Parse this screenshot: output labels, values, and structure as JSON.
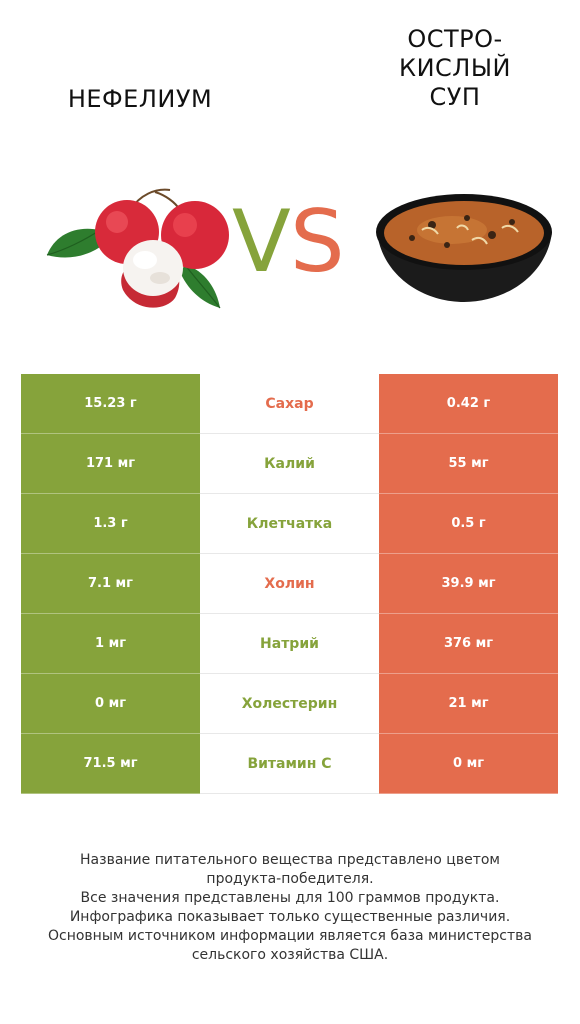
{
  "header": {
    "left_title": "НЕФЕЛИУМ",
    "right_title_lines": [
      "ОСТРО-",
      "КИСЛЫЙ",
      "СУП"
    ]
  },
  "vs": {
    "v": "V",
    "s": "S"
  },
  "colors": {
    "left": "#86a33b",
    "right": "#e46c4d",
    "neutral": "#86a33b"
  },
  "rows": [
    {
      "left": "15.23 г",
      "nutrient": "Сахар",
      "right": "0.42 г",
      "winner": "right"
    },
    {
      "left": "171 мг",
      "nutrient": "Калий",
      "right": "55 мг",
      "winner": "left"
    },
    {
      "left": "1.3 г",
      "nutrient": "Клетчатка",
      "right": "0.5 г",
      "winner": "left"
    },
    {
      "left": "7.1 мг",
      "nutrient": "Холин",
      "right": "39.9 мг",
      "winner": "right"
    },
    {
      "left": "1 мг",
      "nutrient": "Натрий",
      "right": "376 мг",
      "winner": "left"
    },
    {
      "left": "0 мг",
      "nutrient": "Холестерин",
      "right": "21 мг",
      "winner": "left"
    },
    {
      "left": "71.5 мг",
      "nutrient": "Витамин C",
      "right": "0 мг",
      "winner": "left"
    }
  ],
  "footer_lines": [
    "Название питательного вещества представлено цветом",
    "продукта-победителя.",
    "Все значения представлены для 100 граммов продукта.",
    "Инфографика показывает только существенные различия.",
    "Основным источником информации является база министерства",
    "сельского хозяйства США."
  ]
}
